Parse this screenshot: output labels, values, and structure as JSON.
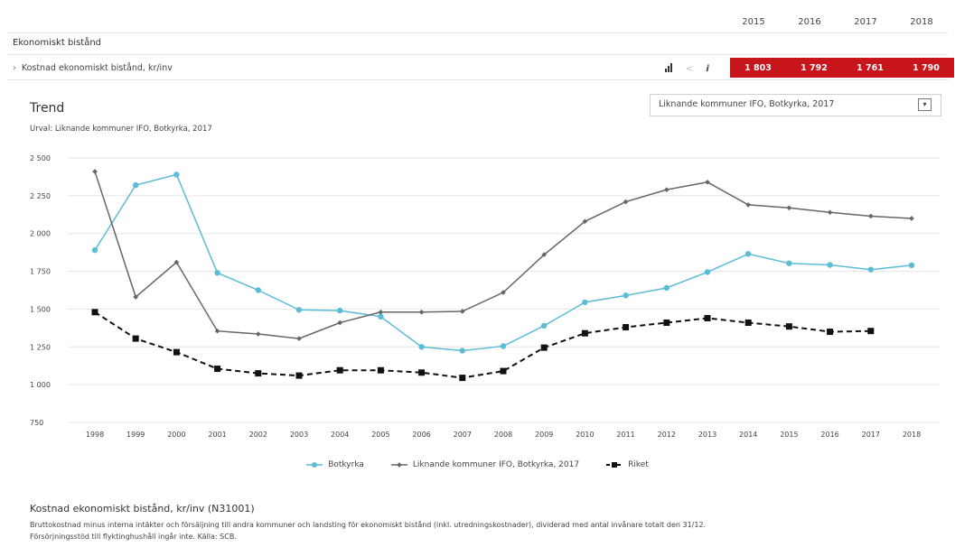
{
  "header": {
    "years": [
      "2015",
      "2016",
      "2017",
      "2018"
    ],
    "section_title": "Ekonomiskt bistånd",
    "row_label": "Kostnad ekonomiskt bistånd, kr/inv",
    "row_values": [
      "1 803",
      "1 792",
      "1 761",
      "1 790"
    ],
    "row_value_color": "#c8141b",
    "tools": {
      "bar_icon": "bar-chart-icon",
      "share_icon": "share-icon",
      "info_icon": "info-icon"
    }
  },
  "trend": {
    "title": "Trend",
    "urval": "Urval: Liknande kommuner IFO, Botkyrka, 2017",
    "selector_value": "Liknande kommuner IFO, Botkyrka, 2017"
  },
  "chart_data": {
    "type": "line",
    "x": [
      "1998",
      "1999",
      "2000",
      "2001",
      "2002",
      "2003",
      "2004",
      "2005",
      "2006",
      "2007",
      "2008",
      "2009",
      "2010",
      "2011",
      "2012",
      "2013",
      "2014",
      "2015",
      "2016",
      "2017",
      "2018"
    ],
    "ylim": [
      750,
      2500
    ],
    "y_ticks": [
      750,
      1000,
      1250,
      1500,
      1750,
      2000,
      2250,
      2500
    ],
    "y_tick_labels": [
      "750",
      "1 000",
      "1 250",
      "1 500",
      "1 750",
      "2 000",
      "2 250",
      "2 500"
    ],
    "grid": true,
    "legend_position": "bottom",
    "series": [
      {
        "name": "Botkyrka",
        "color": "#5bbcd6",
        "marker": "circle",
        "dash": false,
        "values": [
          1890,
          2320,
          2390,
          1740,
          1625,
          1495,
          1490,
          1450,
          1250,
          1225,
          1255,
          1390,
          1545,
          1590,
          1640,
          1745,
          1865,
          1803,
          1792,
          1761,
          1790
        ]
      },
      {
        "name": "Liknande kommuner IFO, Botkyrka, 2017",
        "color": "#666666",
        "marker": "diamond",
        "dash": false,
        "values": [
          2410,
          1580,
          1810,
          1355,
          1335,
          1305,
          1410,
          1480,
          1480,
          1485,
          1610,
          1860,
          2080,
          2210,
          2290,
          2340,
          2190,
          2170,
          2140,
          2115,
          2100
        ]
      },
      {
        "name": "Riket",
        "color": "#111111",
        "marker": "square",
        "dash": true,
        "values": [
          1480,
          1305,
          1215,
          1105,
          1075,
          1060,
          1095,
          1095,
          1080,
          1045,
          1090,
          1245,
          1340,
          1380,
          1410,
          1440,
          1410,
          1385,
          1350,
          1355,
          null
        ]
      }
    ]
  },
  "footer": {
    "title": "Kostnad ekonomiskt bistånd, kr/inv (N31001)",
    "desc1": "Bruttokostnad minus interna intäkter och försäljning till andra kommuner och landsting för ekonomiskt bistånd (inkl. utredningskostnader), dividerad med antal invånare totalt den 31/12.",
    "desc2": "Försörjningsstöd till flyktinghushåll ingår inte. Källa: SCB."
  }
}
